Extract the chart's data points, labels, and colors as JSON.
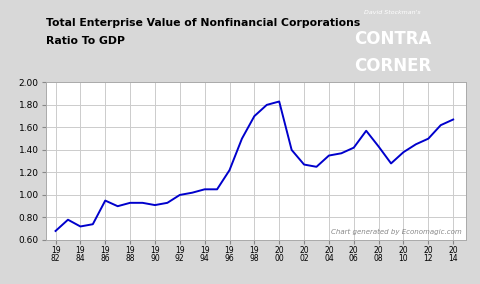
{
  "title_line1": "Total Enterprise Value of Nonfinancial Corporations",
  "title_line2": "Ratio To GDP",
  "watermark": "Chart generated by Economagic.com",
  "line_color": "#0000cc",
  "fig_bg_color": "#d8d8d8",
  "plot_bg_color": "#ffffff",
  "grid_color": "#cccccc",
  "ylim": [
    0.6,
    2.0
  ],
  "yticks": [
    0.6,
    0.8,
    1.0,
    1.2,
    1.4,
    1.6,
    1.8,
    2.0
  ],
  "xtick_positions": [
    1982,
    1984,
    1986,
    1988,
    1990,
    1992,
    1994,
    1996,
    1998,
    2000,
    2002,
    2004,
    2006,
    2008,
    2010,
    2012,
    2014
  ],
  "x_labels": [
    "19\n82",
    "19\n84",
    "19\n86",
    "19\n88",
    "19\n90",
    "19\n92",
    "19\n94",
    "19\n96",
    "19\n98",
    "20\n00",
    "20\n02",
    "20\n04",
    "20\n06",
    "20\n08",
    "20\n10",
    "20\n12",
    "20\n14"
  ],
  "data_x": [
    1982,
    1983,
    1984,
    1985,
    1986,
    1987,
    1988,
    1989,
    1990,
    1991,
    1992,
    1993,
    1994,
    1995,
    1996,
    1997,
    1998,
    1999,
    2000,
    2001,
    2002,
    2003,
    2004,
    2005,
    2006,
    2007,
    2008,
    2009,
    2010,
    2011,
    2012,
    2013,
    2014
  ],
  "data_y": [
    0.68,
    0.78,
    0.72,
    0.74,
    0.95,
    0.9,
    0.93,
    0.93,
    0.91,
    0.93,
    1.0,
    1.02,
    1.05,
    1.05,
    1.22,
    1.5,
    1.7,
    1.8,
    1.83,
    1.4,
    1.27,
    1.25,
    1.35,
    1.37,
    1.42,
    1.57,
    1.43,
    1.28,
    1.38,
    1.45,
    1.5,
    1.62,
    1.67
  ],
  "xlim_left": 1981.2,
  "xlim_right": 2015.0
}
